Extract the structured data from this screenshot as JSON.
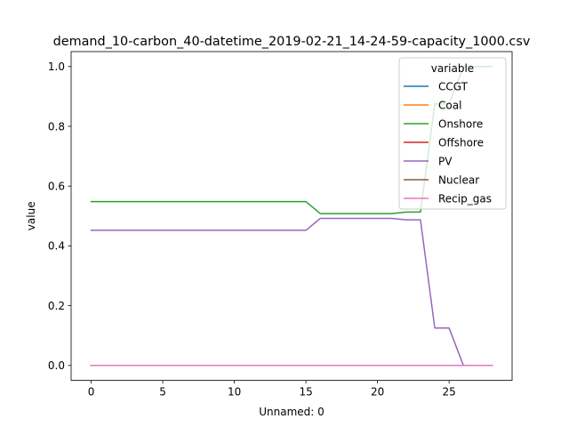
{
  "chart_data": {
    "type": "line",
    "title": "demand_10-carbon_40-datetime_2019-02-21_14-24-59-capacity_1000.csv",
    "xlabel": "Unnamed: 0",
    "ylabel": "value",
    "xlim": [
      -1.4,
      29.4
    ],
    "ylim": [
      -0.05,
      1.05
    ],
    "xticks": [
      0,
      5,
      10,
      15,
      20,
      25
    ],
    "yticks": [
      0.0,
      0.2,
      0.4,
      0.6,
      0.8,
      1.0
    ],
    "x": [
      0,
      1,
      2,
      3,
      4,
      5,
      6,
      7,
      8,
      9,
      10,
      11,
      12,
      13,
      14,
      15,
      16,
      17,
      18,
      19,
      20,
      21,
      22,
      23,
      24,
      25,
      26,
      27,
      28
    ],
    "legend": {
      "title": "variable",
      "placement": "top-right"
    },
    "series": [
      {
        "name": "CCGT",
        "color": "#1f77b4",
        "values": [
          0,
          0,
          0,
          0,
          0,
          0,
          0,
          0,
          0,
          0,
          0,
          0,
          0,
          0,
          0,
          0,
          0,
          0,
          0,
          0,
          0,
          0,
          0,
          0,
          0,
          0,
          0,
          0,
          0
        ]
      },
      {
        "name": "Coal",
        "color": "#ff7f0e",
        "values": [
          0,
          0,
          0,
          0,
          0,
          0,
          0,
          0,
          0,
          0,
          0,
          0,
          0,
          0,
          0,
          0,
          0,
          0,
          0,
          0,
          0,
          0,
          0,
          0,
          0,
          0,
          0,
          0,
          0
        ]
      },
      {
        "name": "Onshore",
        "color": "#2ca02c",
        "values": [
          0.548,
          0.548,
          0.548,
          0.548,
          0.548,
          0.548,
          0.548,
          0.548,
          0.548,
          0.548,
          0.548,
          0.548,
          0.548,
          0.548,
          0.548,
          0.548,
          0.508,
          0.508,
          0.508,
          0.508,
          0.508,
          0.508,
          0.513,
          0.513,
          0.875,
          0.875,
          1.0,
          1.0,
          1.0
        ]
      },
      {
        "name": "Offshore",
        "color": "#d62728",
        "values": [
          0,
          0,
          0,
          0,
          0,
          0,
          0,
          0,
          0,
          0,
          0,
          0,
          0,
          0,
          0,
          0,
          0,
          0,
          0,
          0,
          0,
          0,
          0,
          0,
          0,
          0,
          0,
          0,
          0
        ]
      },
      {
        "name": "PV",
        "color": "#9467bd",
        "values": [
          0.452,
          0.452,
          0.452,
          0.452,
          0.452,
          0.452,
          0.452,
          0.452,
          0.452,
          0.452,
          0.452,
          0.452,
          0.452,
          0.452,
          0.452,
          0.452,
          0.492,
          0.492,
          0.492,
          0.492,
          0.492,
          0.492,
          0.487,
          0.487,
          0.125,
          0.125,
          0.0,
          0.0,
          0.0
        ]
      },
      {
        "name": "Nuclear",
        "color": "#8c564b",
        "values": [
          0,
          0,
          0,
          0,
          0,
          0,
          0,
          0,
          0,
          0,
          0,
          0,
          0,
          0,
          0,
          0,
          0,
          0,
          0,
          0,
          0,
          0,
          0,
          0,
          0,
          0,
          0,
          0,
          0
        ]
      },
      {
        "name": "Recip_gas",
        "color": "#e377c2",
        "values": [
          0,
          0,
          0,
          0,
          0,
          0,
          0,
          0,
          0,
          0,
          0,
          0,
          0,
          0,
          0,
          0,
          0,
          0,
          0,
          0,
          0,
          0,
          0,
          0,
          0,
          0,
          0,
          0,
          0
        ]
      }
    ]
  }
}
